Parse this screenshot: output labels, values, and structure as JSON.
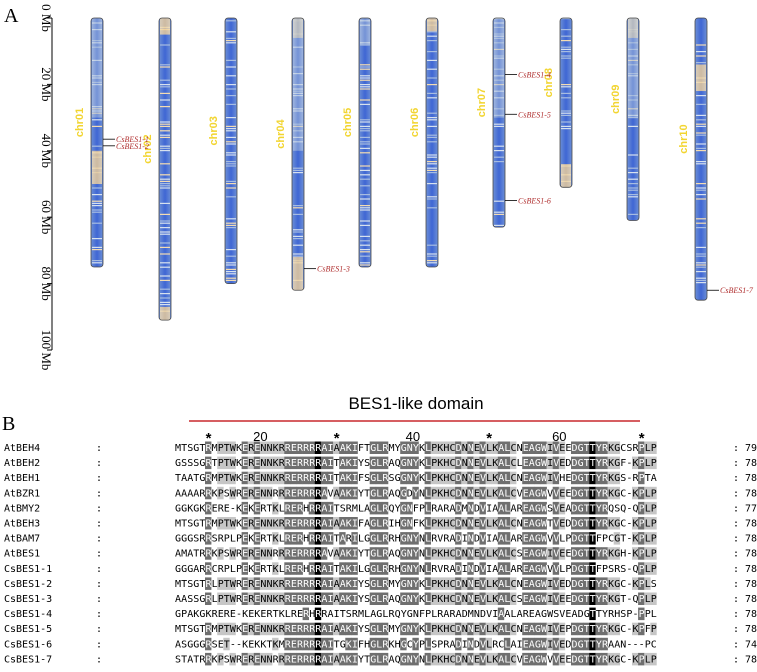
{
  "panel_a_label": "A",
  "panel_b_label": "B",
  "axis": {
    "ticks": [
      "0 Mb",
      "20 Mb",
      "40 Mb",
      "60 Mb",
      "80 Mb",
      "100 Mb"
    ],
    "max_mb": 100
  },
  "chromosomes": [
    {
      "name": "chr01",
      "length_mb": 75
    },
    {
      "name": "chr02",
      "length_mb": 91
    },
    {
      "name": "chr03",
      "length_mb": 80
    },
    {
      "name": "chr04",
      "length_mb": 82
    },
    {
      "name": "chr05",
      "length_mb": 75
    },
    {
      "name": "chr06",
      "length_mb": 75
    },
    {
      "name": "chr07",
      "length_mb": 63
    },
    {
      "name": "chr08",
      "length_mb": 51
    },
    {
      "name": "chr09",
      "length_mb": 61
    },
    {
      "name": "chr10",
      "length_mb": 85
    }
  ],
  "genes": [
    {
      "name": "CsBES1-1",
      "chr": "chr01",
      "pos_mb": 36.5
    },
    {
      "name": "CsBES1-2",
      "chr": "chr01",
      "pos_mb": 38.5
    },
    {
      "name": "CsBES1-3",
      "chr": "chr04",
      "pos_mb": 75.5
    },
    {
      "name": "CsBES1-4",
      "chr": "chr07",
      "pos_mb": 17
    },
    {
      "name": "CsBES1-5",
      "chr": "chr07",
      "pos_mb": 29
    },
    {
      "name": "CsBES1-6",
      "chr": "chr07",
      "pos_mb": 55
    },
    {
      "name": "CsBES1-7",
      "chr": "chr10",
      "pos_mb": 82
    }
  ],
  "alignment": {
    "domain_title": "BES1-like domain",
    "position_labels": [
      "20",
      "40",
      "60"
    ],
    "conservation_mark": "*",
    "rows": [
      {
        "name": "AtBEH4",
        "seq": "MTSGTRMPTWKERENNKRRERRRRAIAAKIFTGLRMYGNYKLPKHCDNNEVLKALCNEAGWIVEEDGTTYRKGCSRPLP",
        "len": "79"
      },
      {
        "name": "AtBEH2",
        "seq": "GSSSGRTPTWKERENNKRRERRRRAITAKIYSGLRAQGNYKLPKHCDNNEVLKALCLEAGWIVEDDGTTYRKGF-KPLP",
        "len": "78"
      },
      {
        "name": "AtBEH1",
        "seq": "TAATGRMPTWKERENNKRRERRRRAITAKIFSGLRSGGNYKLPKHCDNNEVLKALCNEAGWIVHEDGTTYRKGS-RPTA",
        "len": "78"
      },
      {
        "name": "AtBZR1",
        "seq": "AAAARRKPSWRERENNRRRERRRRAVAAKIYTGLRAQGDYNLPKHCDNNEVLKALCVEAGWVVEEDGTTYRKGC-KPLP",
        "len": "78"
      },
      {
        "name": "AtBMY2",
        "seq": "GGKGKRERE-KEKERTKLRERHRRAITSRMLAGLRQYGNFPLRARADMNDVIAALAREAGWSVEADGTTYRQSQ-QPLP",
        "len": "77"
      },
      {
        "name": "AtBEH3",
        "seq": "MTSGTRMPTWKERENNKRRERRRRAIAAKIFAGLRIHGNFKLPKHCDNNEVLKALCNEAGWTVEDDGTTYRKGC-KPLP",
        "len": "78"
      },
      {
        "name": "AtBAM7",
        "seq": "GGGSRRSRPLPEKERTKLRERHRRAITARILGGLRRHGNYNLRVRADINDVIAALAREAGWVVLPDGTTFPCGT-KPLP",
        "len": "78"
      },
      {
        "name": "AtBES1",
        "seq": "AMATRRKPSWRERENNRRRERRRRAVAAKIYTGLRAQGNYNLPKHCDNNEVLKALCSEAGWIVEEDGTTYRKGH-KPLP",
        "len": "78"
      },
      {
        "name": "CsBES1-1",
        "seq": "GGGARRCRPLPEKERTKLRERHRRAITAKILGGLRRHGNYNLRVRADINDVIAALAREAGWVVLPDGTTFPSRS-QPLP",
        "len": "78"
      },
      {
        "name": "CsBES1-2",
        "seq": "MTSGTRLPTWRERENNKRRERRRRAIAAKIYSGLRMYGNYKLPKHCDNNEVLKALCNEAGWIVEDDGTTYRKGC-KPLS",
        "len": "78"
      },
      {
        "name": "CsBES1-3",
        "seq": "AASSGRLPTWRERENNKRRERRRRAIAAKIYSGLRAQGNYKLPKHCDNNEVLKALCSEAGWIVEEDGTTYRKGT-QPLP",
        "len": "78"
      },
      {
        "name": "CsBES1-4",
        "seq": "GPAKGKRERE-KEKERTKLRERHRRAITSRMLAGLRQYGNFPLRARADMNDVIAALAREAGWSVEADGTTYRHSP-PPLP",
        "len": "78"
      },
      {
        "name": "CsBES1-5",
        "seq": "MTSGTRMPTWKERENNKRRERRRRAIAAKIYSGLRMYGNYKLPKHCDNNEVLKALCNEAGWIVEPDGTTYRKGC-KPFP",
        "len": "78"
      },
      {
        "name": "CsBES1-6",
        "seq": "ASGGGRSET--KEKKTKMRERRRRAITGKIFHGLRKHGCYPLSPRADINDVLRCLAIEAGWIVEDDGTTYRAAN---PC",
        "len": "74"
      },
      {
        "name": "CsBES1-7",
        "seq": "STATRRKPSWRERENNRRRERRRRAIAAKIYTGLRAQGNYNLPKHCDNNEVLKALCVEAGWVVEEDGTTYRKGC-KPLP",
        "len": "78"
      }
    ]
  }
}
